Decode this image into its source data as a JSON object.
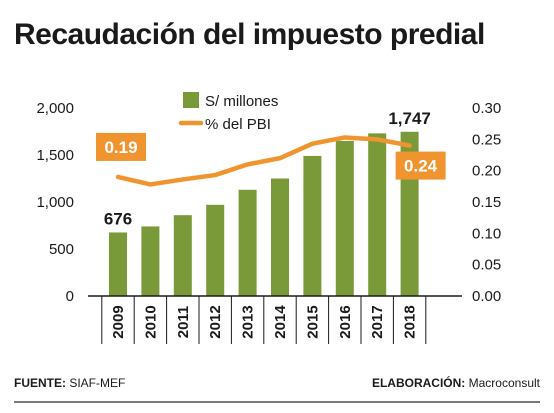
{
  "title": "Recaudación del impuesto predial",
  "footer": {
    "source_label": "FUENTE:",
    "source_value": " SIAF-MEF",
    "credit_label": "ELABORACIÓN:",
    "credit_value": " Macroconsult"
  },
  "chart_data": {
    "type": "bar",
    "categories": [
      "2009",
      "2010",
      "2011",
      "2012",
      "2013",
      "2014",
      "2015",
      "2016",
      "2017",
      "2018"
    ],
    "series": [
      {
        "name": "S/ millones",
        "type": "bar",
        "axis": "left",
        "color": "#7a9a3a",
        "values": [
          676,
          740,
          860,
          970,
          1130,
          1250,
          1490,
          1650,
          1730,
          1747
        ]
      },
      {
        "name": "% del PBI",
        "type": "line",
        "axis": "right",
        "color": "#f0942f",
        "values": [
          0.19,
          0.178,
          0.186,
          0.193,
          0.21,
          0.22,
          0.243,
          0.253,
          0.25,
          0.24
        ]
      }
    ],
    "y_left": {
      "ylim": [
        0,
        2000
      ],
      "ticks": [
        "0",
        "500",
        "1,000",
        "1,500",
        "2,000"
      ],
      "tick_values": [
        0,
        500,
        1000,
        1500,
        2000
      ]
    },
    "y_right": {
      "ylim": [
        0,
        0.3
      ],
      "ticks": [
        "0.00",
        "0.05",
        "0.10",
        "0.15",
        "0.20",
        "0.25",
        "0.30"
      ],
      "tick_values": [
        0,
        0.05,
        0.1,
        0.15,
        0.2,
        0.25,
        0.3
      ]
    },
    "annotations": [
      {
        "label": "676",
        "series": 0,
        "index": 0,
        "style": "plain"
      },
      {
        "label": "1,747",
        "series": 0,
        "index": 9,
        "style": "plain"
      },
      {
        "label": "0.19",
        "series": 1,
        "index": 0,
        "style": "badge"
      },
      {
        "label": "0.24",
        "series": 1,
        "index": 9,
        "style": "badge"
      }
    ],
    "legend": "top-center",
    "grid": false
  }
}
